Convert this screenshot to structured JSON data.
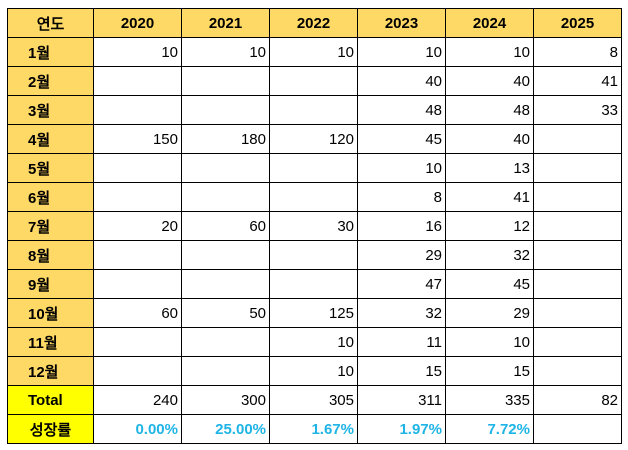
{
  "header": {
    "year_label": "연도",
    "years": [
      "2020",
      "2021",
      "2022",
      "2023",
      "2024",
      "2025"
    ]
  },
  "months": [
    {
      "label": "1월",
      "values": [
        "10",
        "10",
        "10",
        "10",
        "10",
        "8"
      ]
    },
    {
      "label": "2월",
      "values": [
        "",
        "",
        "",
        "40",
        "40",
        "41"
      ]
    },
    {
      "label": "3월",
      "values": [
        "",
        "",
        "",
        "48",
        "48",
        "33"
      ]
    },
    {
      "label": "4월",
      "values": [
        "150",
        "180",
        "120",
        "45",
        "40",
        ""
      ]
    },
    {
      "label": "5월",
      "values": [
        "",
        "",
        "",
        "10",
        "13",
        ""
      ]
    },
    {
      "label": "6월",
      "values": [
        "",
        "",
        "",
        "8",
        "41",
        ""
      ]
    },
    {
      "label": "7월",
      "values": [
        "20",
        "60",
        "30",
        "16",
        "12",
        ""
      ]
    },
    {
      "label": "8월",
      "values": [
        "",
        "",
        "",
        "29",
        "32",
        ""
      ]
    },
    {
      "label": "9월",
      "values": [
        "",
        "",
        "",
        "47",
        "45",
        ""
      ]
    },
    {
      "label": "10월",
      "values": [
        "60",
        "50",
        "125",
        "32",
        "29",
        ""
      ]
    },
    {
      "label": "11월",
      "values": [
        "",
        "",
        "10",
        "11",
        "10",
        ""
      ]
    },
    {
      "label": "12월",
      "values": [
        "",
        "",
        "10",
        "15",
        "15",
        ""
      ]
    }
  ],
  "total": {
    "label": "Total",
    "values": [
      "240",
      "300",
      "305",
      "311",
      "335",
      "82"
    ]
  },
  "growth": {
    "label": "성장률",
    "values": [
      "0.00%",
      "25.00%",
      "1.67%",
      "1.97%",
      "7.72%",
      ""
    ]
  },
  "colors": {
    "header_fill": "#ffd966",
    "summary_fill": "#ffff00",
    "growth_text": "#1fb4e6"
  }
}
